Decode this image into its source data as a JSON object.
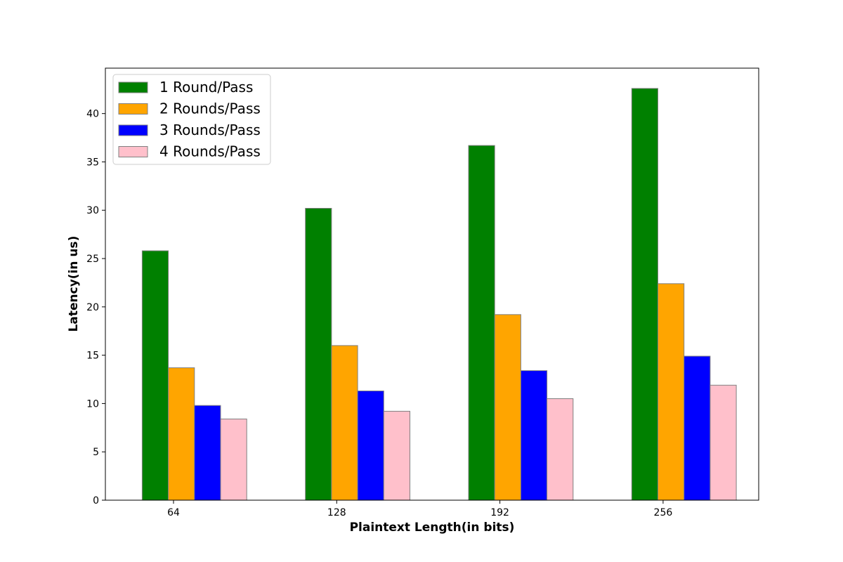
{
  "chart_data": {
    "type": "bar",
    "title": "",
    "xlabel": "Plaintext Length(in bits)",
    "ylabel": "Latency(in us)",
    "categories": [
      "64",
      "128",
      "192",
      "256"
    ],
    "ylim": [
      0,
      44.7
    ],
    "yticks": [
      0,
      5,
      10,
      15,
      20,
      25,
      30,
      35,
      40
    ],
    "grid": false,
    "legend_position": "top-left",
    "edge_color": "#808080",
    "series": [
      {
        "name": "1 Round/Pass",
        "color": "#008000",
        "values": [
          25.8,
          30.2,
          36.7,
          42.6
        ]
      },
      {
        "name": "2 Rounds/Pass",
        "color": "#ffa500",
        "values": [
          13.7,
          16.0,
          19.2,
          22.4
        ]
      },
      {
        "name": "3 Rounds/Pass",
        "color": "#0000ff",
        "values": [
          9.8,
          11.3,
          13.4,
          14.9
        ]
      },
      {
        "name": "4 Rounds/Pass",
        "color": "#ffc0cb",
        "values": [
          8.4,
          9.2,
          10.5,
          11.9
        ]
      }
    ]
  }
}
